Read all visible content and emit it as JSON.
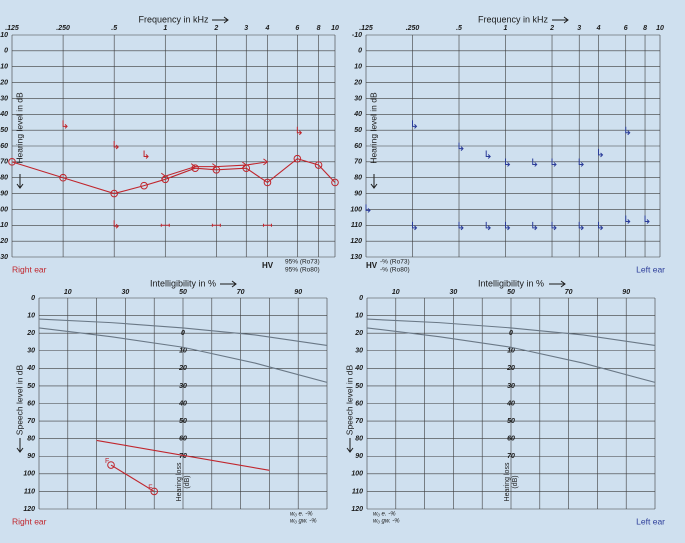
{
  "chart_data": [
    {
      "type": "audiogram",
      "title": "Frequency in kHz",
      "ylabel": "Hearing level in dB",
      "xlog": true,
      "y_inverted": true,
      "xlim": [
        0.125,
        10
      ],
      "xticks": [
        {
          "value": 0.125,
          "label": ".125"
        },
        {
          "value": 0.25,
          "label": ".250"
        },
        {
          "value": 0.5,
          "label": ".5"
        },
        1,
        2,
        3,
        4,
        6,
        8,
        10
      ],
      "ylim": [
        -10,
        130
      ],
      "yticks": [
        -10,
        0,
        10,
        20,
        30,
        40,
        50,
        60,
        70,
        80,
        90,
        100,
        110,
        120,
        130
      ],
      "ear_label": "Right ear",
      "ear_color": "#c0262d",
      "hv": "HV",
      "hv_lines": [
        "95% (Ro73)",
        "95% (Ro80)"
      ],
      "series": [
        {
          "color": "#c0262d",
          "marker": "circle",
          "line": true,
          "x": [
            0.125,
            0.25,
            0.5,
            0.75,
            1,
            1.5,
            2,
            3,
            4,
            6,
            8,
            10
          ],
          "values": [
            70,
            80,
            90,
            85,
            81,
            74,
            75,
            74,
            83,
            68,
            72,
            83
          ]
        },
        {
          "color": "#c0262d",
          "marker": "arrow",
          "line": true,
          "x": [
            1,
            1.5,
            2,
            3,
            4
          ],
          "values": [
            79,
            73,
            73,
            72,
            70
          ]
        },
        {
          "color": "#c0262d",
          "marker": "bracket",
          "line": false,
          "x": [
            0.25,
            0.5,
            0.75,
            6,
            0.5
          ],
          "values": [
            47,
            60,
            66,
            51,
            110
          ]
        },
        {
          "color": "#c0262d",
          "marker": "dash",
          "line": false,
          "x": [
            1,
            2,
            4
          ],
          "values": [
            110,
            110,
            110
          ]
        }
      ]
    },
    {
      "type": "audiogram",
      "title": "Frequency in kHz",
      "ylabel": "Hearing level in dB",
      "xlog": true,
      "y_inverted": true,
      "xlim": [
        0.125,
        10
      ],
      "xticks": [
        {
          "value": 0.125,
          "label": ".125"
        },
        {
          "value": 0.25,
          "label": ".250"
        },
        {
          "value": 0.5,
          "label": ".5"
        },
        1,
        2,
        3,
        4,
        6,
        8,
        10
      ],
      "ylim": [
        -10,
        130
      ],
      "yticks": [
        -10,
        0,
        10,
        20,
        30,
        40,
        50,
        60,
        70,
        80,
        90,
        100,
        110,
        120,
        130
      ],
      "ear_label": "Left ear",
      "ear_color": "#2b3c99",
      "hv": "HV",
      "hv_lines": [
        "-% (Ro73)",
        "-% (Ro80)"
      ],
      "series": [
        {
          "color": "#2b3c99",
          "marker": "bracket",
          "line": false,
          "x": [
            0.25,
            0.5,
            0.75,
            1,
            1.5,
            2,
            3,
            4,
            6
          ],
          "values": [
            47,
            61,
            66,
            71,
            71,
            71,
            71,
            65,
            51
          ]
        },
        {
          "color": "#2b3c99",
          "marker": "bracket",
          "line": false,
          "x": [
            0.125,
            0.25,
            0.5,
            0.75,
            1,
            1.5,
            2,
            3,
            4,
            6,
            8
          ],
          "values": [
            100,
            111,
            111,
            111,
            111,
            111,
            111,
            111,
            111,
            107,
            107
          ]
        }
      ]
    },
    {
      "type": "speech",
      "title": "Intelligibility in %",
      "ylabel": "Speech level in dB",
      "y_inverted": true,
      "xlim": [
        0,
        100
      ],
      "xticks": [
        10,
        30,
        50,
        70,
        90
      ],
      "xgrid": [
        0,
        20,
        40,
        60,
        80,
        100
      ],
      "ylim": [
        0,
        120
      ],
      "yticks": [
        0,
        10,
        20,
        30,
        40,
        50,
        60,
        70,
        80,
        90,
        100,
        110,
        120
      ],
      "hl_title": [
        "Hearing loss",
        "(dB)"
      ],
      "hl_x": 50,
      "hl_ticks": [
        {
          "value": 20,
          "label": "0"
        },
        {
          "value": 30,
          "label": "10"
        },
        {
          "value": 40,
          "label": "20"
        },
        {
          "value": 50,
          "label": "30"
        },
        {
          "value": 60,
          "label": "40"
        },
        {
          "value": 70,
          "label": "50"
        },
        {
          "value": 80,
          "label": "60"
        },
        {
          "value": 90,
          "label": "70"
        }
      ],
      "ear_label": "Right ear",
      "ear_color": "#c0262d",
      "w_lines": [
        "w₀ e.   -%",
        "w₀ gw. -%"
      ],
      "series": [
        {
          "color": "#6a7886",
          "marker": "none",
          "line": true,
          "x": [
            0,
            25,
            50,
            75,
            100
          ],
          "values": [
            12,
            14,
            17,
            21,
            27
          ]
        },
        {
          "color": "#6a7886",
          "marker": "none",
          "line": true,
          "x": [
            0,
            25,
            50,
            75,
            100
          ],
          "values": [
            17,
            22,
            28,
            37,
            48
          ]
        },
        {
          "color": "#c0262d",
          "marker": "none",
          "line": true,
          "x": [
            20,
            80
          ],
          "values": [
            81,
            98
          ]
        },
        {
          "color": "#c0262d",
          "marker": "circle",
          "line": true,
          "x": [
            25,
            40
          ],
          "values": [
            95,
            110
          ],
          "point_labels": [
            "F",
            "F"
          ]
        }
      ]
    },
    {
      "type": "speech",
      "title": "Intelligibility in %",
      "ylabel": "Speech level in dB",
      "y_inverted": true,
      "xlim": [
        0,
        100
      ],
      "xticks": [
        10,
        30,
        50,
        70,
        90
      ],
      "xgrid": [
        0,
        20,
        40,
        60,
        80,
        100
      ],
      "ylim": [
        0,
        120
      ],
      "yticks": [
        0,
        10,
        20,
        30,
        40,
        50,
        60,
        70,
        80,
        90,
        100,
        110,
        120
      ],
      "hl_title": [
        "Hearing loss",
        "(dB)"
      ],
      "hl_x": 50,
      "hl_ticks": [
        {
          "value": 20,
          "label": "0"
        },
        {
          "value": 30,
          "label": "10"
        },
        {
          "value": 40,
          "label": "20"
        },
        {
          "value": 50,
          "label": "30"
        },
        {
          "value": 60,
          "label": "40"
        },
        {
          "value": 70,
          "label": "50"
        },
        {
          "value": 80,
          "label": "60"
        },
        {
          "value": 90,
          "label": "70"
        }
      ],
      "ear_label": "Left ear",
      "ear_color": "#2b3c99",
      "w_lines": [
        "w₀ e.   -%",
        "w₀ gw. -%"
      ],
      "series": [
        {
          "color": "#6a7886",
          "marker": "none",
          "line": true,
          "x": [
            0,
            25,
            50,
            75,
            100
          ],
          "values": [
            12,
            14,
            17,
            21,
            27
          ]
        },
        {
          "color": "#6a7886",
          "marker": "none",
          "line": true,
          "x": [
            0,
            25,
            50,
            75,
            100
          ],
          "values": [
            17,
            22,
            28,
            37,
            48
          ]
        }
      ]
    }
  ]
}
